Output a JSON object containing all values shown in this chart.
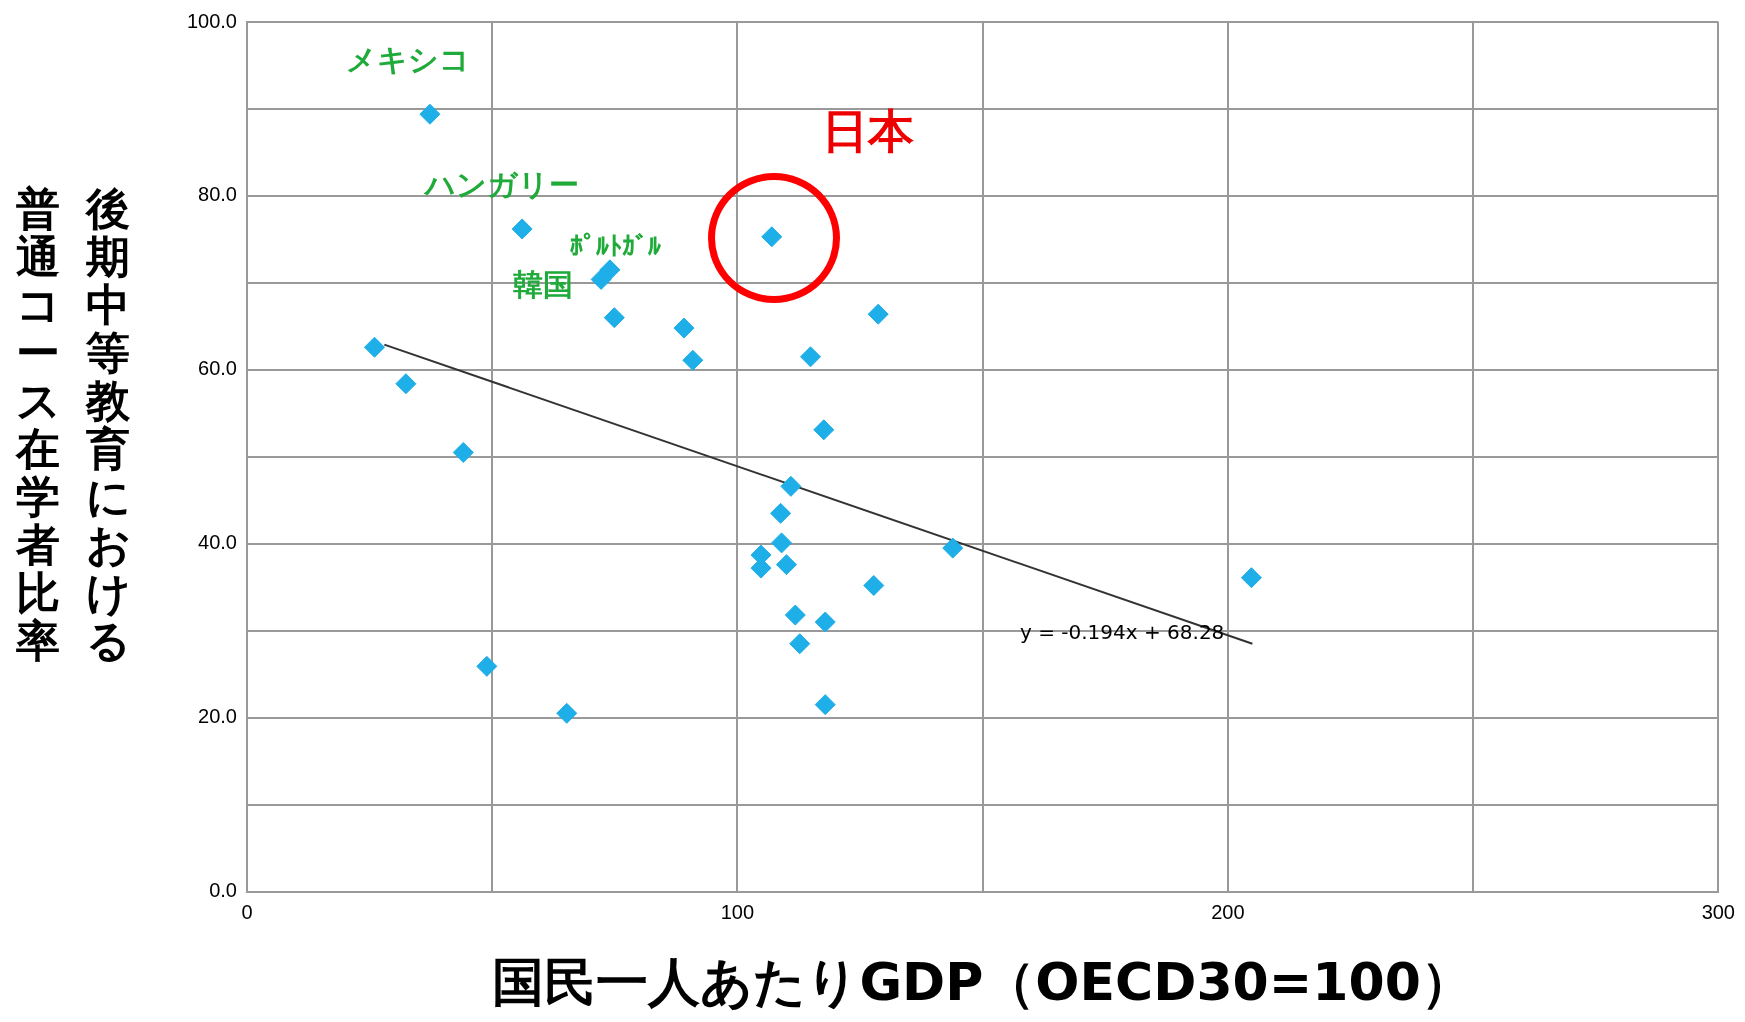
{
  "chart_data": {
    "type": "scatter",
    "xlabel": "国民一人あたりGDP（OECD30=100）",
    "ylabel": "後期中等教育における普通コース在学者比率",
    "series": [
      {
        "color": "#1eaee8",
        "marker": "diamond",
        "x": [
          37.3,
          56.1,
          72.2,
          74.0,
          74.9,
          26.0,
          32.4,
          44.1,
          89.1,
          90.9,
          107.0,
          128.7,
          114.9,
          117.6,
          110.9,
          108.8,
          104.8,
          109.0,
          104.8,
          110.0,
          143.9,
          127.8,
          111.8,
          117.9,
          112.7,
          204.8,
          48.9,
          65.2,
          117.9
        ],
        "values": [
          89.4,
          76.2,
          70.4,
          71.5,
          66.0,
          62.6,
          58.4,
          50.5,
          64.8,
          61.1,
          75.3,
          66.4,
          61.5,
          53.1,
          46.6,
          43.5,
          38.7,
          40.1,
          37.2,
          37.6,
          39.5,
          35.2,
          31.8,
          31.0,
          28.5,
          36.1,
          25.9,
          20.5,
          21.5
        ]
      },
      {
        "type": "line",
        "color": "#333333",
        "marker": "none",
        "x": [
          28,
          205
        ],
        "values": [
          62.9,
          28.5
        ]
      }
    ],
    "annotations": [
      {
        "text": "メキシコ",
        "x": 37.3,
        "y": 89.4
      },
      {
        "text": "ハンガリー",
        "x": 56.1,
        "y": 76.2
      },
      {
        "text": "ﾎﾟﾙﾄｶﾞﾙ",
        "x": 74.0,
        "y": 71.5
      },
      {
        "text": "韓国",
        "x": 72.2,
        "y": 70.4
      },
      {
        "text": "日本",
        "x": 107.0,
        "y": 75.3
      },
      "y = -0.194x + 68.28"
    ],
    "xlim": [
      0,
      300
    ],
    "xticks": [
      0,
      {
        "value": 50,
        "label": null
      },
      100,
      {
        "value": 150,
        "label": null
      },
      200,
      {
        "value": 250,
        "label": null
      },
      300
    ],
    "ylim": [
      0,
      100
    ],
    "yticks": [
      {
        "value": 0,
        "label": "0.0"
      },
      {
        "value": 10,
        "label": null
      },
      {
        "value": 20,
        "label": "20.0"
      },
      {
        "value": 30,
        "label": null
      },
      {
        "value": 40,
        "label": "40.0"
      },
      {
        "value": 50,
        "label": null
      },
      {
        "value": 60,
        "label": "60.0"
      },
      {
        "value": 70,
        "label": null
      },
      {
        "value": 80,
        "label": "80.0"
      },
      {
        "value": 90,
        "label": null
      },
      {
        "value": 100,
        "label": "100.0"
      }
    ],
    "grid": true,
    "legend": false
  }
}
